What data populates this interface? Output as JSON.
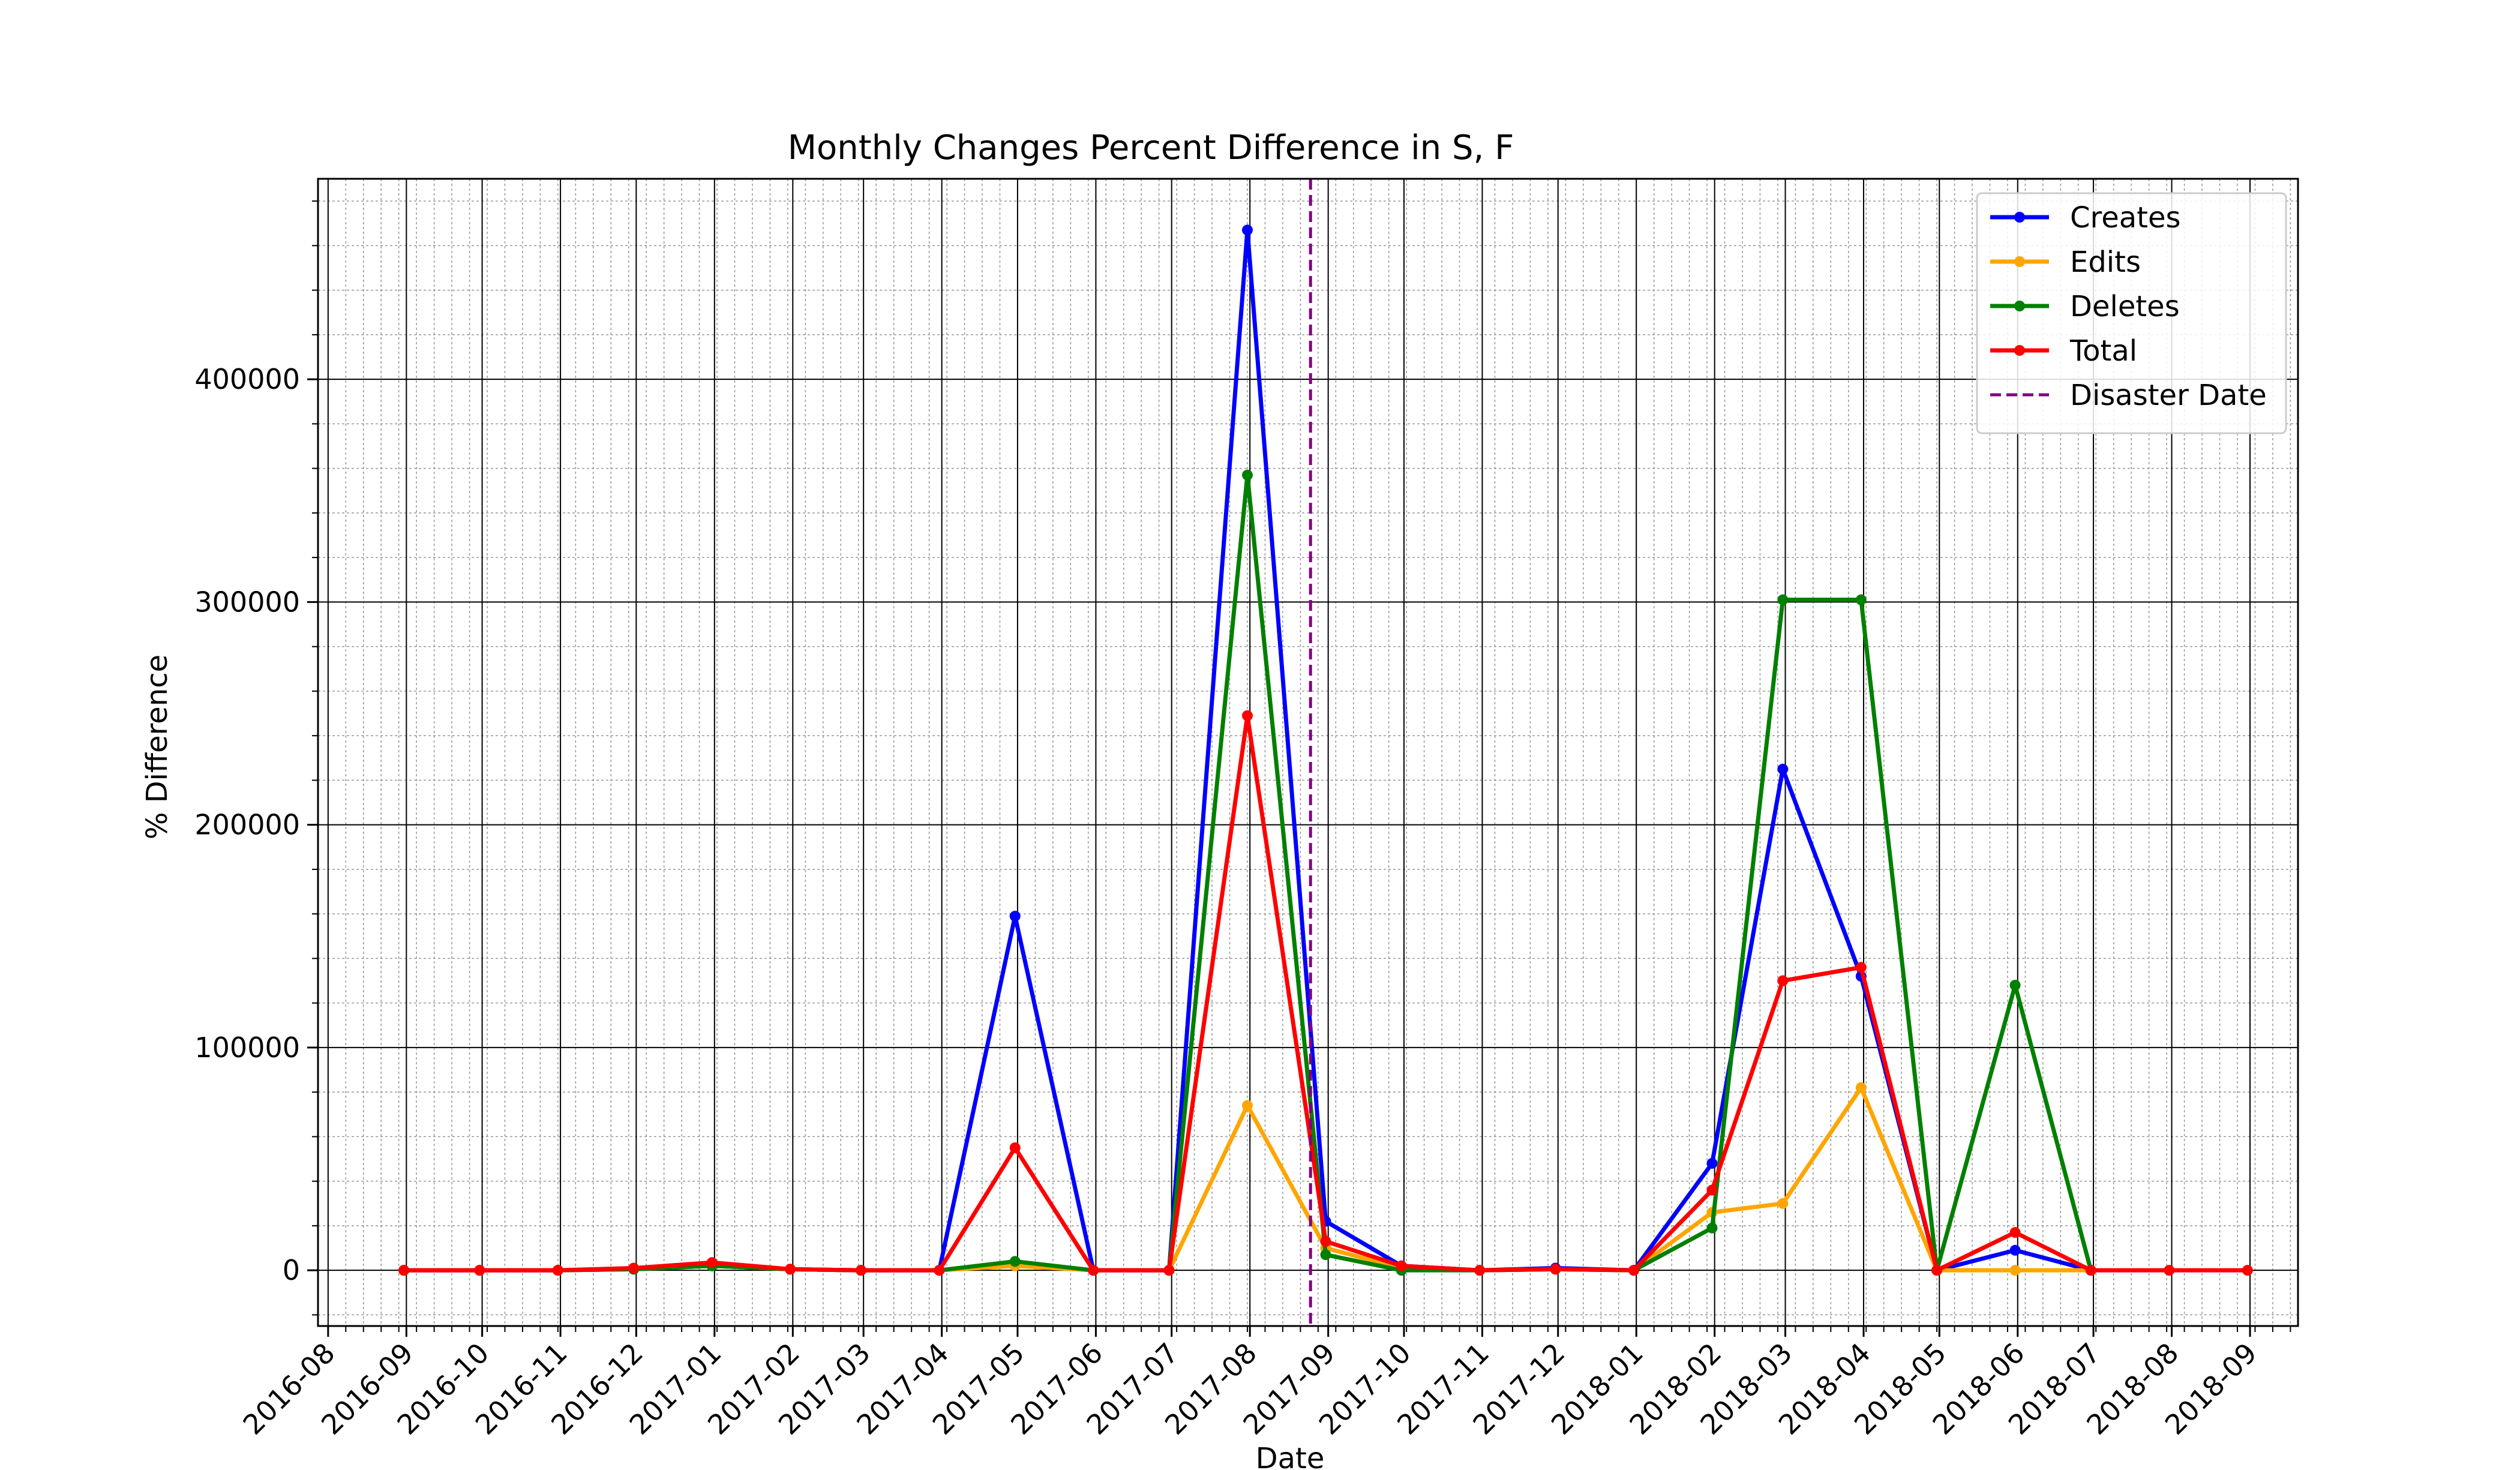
{
  "chart_data": {
    "type": "line",
    "title": "Monthly Changes Percent Difference in S, F",
    "xlabel": "Date",
    "ylabel": "% Difference",
    "x_ticks": [
      "2016-08",
      "2016-09",
      "2016-10",
      "2016-11",
      "2016-12",
      "2017-01",
      "2017-02",
      "2017-03",
      "2017-04",
      "2017-05",
      "2017-06",
      "2017-07",
      "2017-08",
      "2017-09",
      "2017-10",
      "2017-11",
      "2017-12",
      "2018-01",
      "2018-02",
      "2018-03",
      "2018-04",
      "2018-05",
      "2018-06",
      "2018-07",
      "2018-08",
      "2018-09"
    ],
    "y_ticks": [
      0,
      100000,
      200000,
      300000,
      400000
    ],
    "y_tick_labels": [
      "0",
      "100000",
      "200000",
      "300000",
      "400000"
    ],
    "xlim": [
      "2016-07-28",
      "2018-09-20"
    ],
    "ylim": [
      -25000,
      490000
    ],
    "grid": {
      "major": true,
      "minor": true
    },
    "legend_position": "upper right",
    "x": [
      "2016-08-31",
      "2016-09-30",
      "2016-10-31",
      "2016-11-30",
      "2016-12-31",
      "2017-01-31",
      "2017-02-28",
      "2017-03-31",
      "2017-04-30",
      "2017-05-31",
      "2017-06-30",
      "2017-07-31",
      "2017-08-31",
      "2017-09-30",
      "2017-10-31",
      "2017-11-30",
      "2017-12-31",
      "2018-01-31",
      "2018-02-28",
      "2018-03-31",
      "2018-04-30",
      "2018-05-31",
      "2018-06-30",
      "2018-07-31",
      "2018-08-31"
    ],
    "series": [
      {
        "name": "Creates",
        "color": "#0000ff",
        "values": [
          0,
          0,
          0,
          500,
          2000,
          500,
          0,
          0,
          159000,
          0,
          0,
          467000,
          22000,
          2000,
          0,
          1000,
          0,
          48000,
          225000,
          132000,
          0,
          9000,
          0,
          null,
          null
        ]
      },
      {
        "name": "Edits",
        "color": "#ffa500",
        "values": [
          0,
          0,
          0,
          500,
          2000,
          500,
          0,
          0,
          2000,
          0,
          0,
          74000,
          10000,
          1000,
          0,
          500,
          0,
          26000,
          30000,
          82000,
          0,
          0,
          0,
          null,
          null
        ]
      },
      {
        "name": "Deletes",
        "color": "#008000",
        "values": [
          0,
          0,
          0,
          500,
          2000,
          500,
          0,
          0,
          4000,
          0,
          0,
          357000,
          7000,
          0,
          0,
          500,
          0,
          19000,
          301000,
          301000,
          0,
          128000,
          0,
          null,
          null
        ]
      },
      {
        "name": "Total",
        "color": "#ff0000",
        "values": [
          0,
          0,
          0,
          1000,
          3500,
          500,
          0,
          0,
          55000,
          0,
          0,
          249000,
          13000,
          2000,
          0,
          500,
          0,
          36000,
          130000,
          136000,
          0,
          17000,
          0,
          0,
          0
        ]
      }
    ],
    "vline": {
      "name": "Disaster Date",
      "x": "2017-08-25",
      "color": "#800080",
      "style": "dashed"
    }
  }
}
